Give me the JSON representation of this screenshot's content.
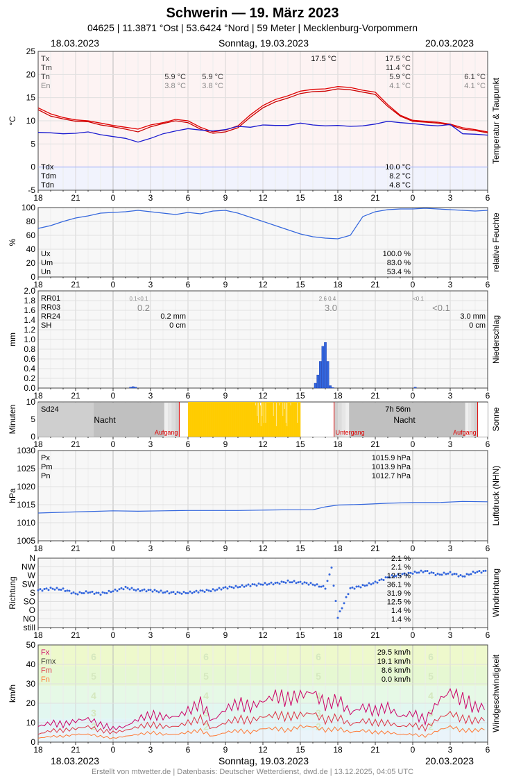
{
  "header": {
    "title": "Schwerin  —  19. März 2023",
    "subtitle": "04625  |  11.3871 °Ost  |  53.6424 °Nord  |  59 Meter  |  Mecklenburg-Vorpommern",
    "date_left": "18.03.2023",
    "date_center": "Sonntag, 19.03.2023",
    "date_right": "20.03.2023"
  },
  "footer": {
    "credit": "Erstellt von mtwetter.de | Datenbasis: Deutscher Wetterdienst, dwd.de | 13.12.2025, 04:05 UTC"
  },
  "colors": {
    "temp": "#e00000",
    "dew": "#1a1ad0",
    "blue": "#3366dd",
    "sun": "#ffcc00",
    "night": "#c0c0c0",
    "magenta": "#cc0066",
    "red": "#dd2222",
    "orange": "#ff7733",
    "grid": "#dddddd"
  },
  "x_ticks": [
    "18",
    "21",
    "0",
    "3",
    "6",
    "9",
    "12",
    "15",
    "18",
    "21",
    "0",
    "3",
    "6"
  ],
  "chart_data": [
    {
      "id": "temp",
      "type": "line",
      "ylabel": "°C",
      "side_label": "Temperatur & Taupunkt",
      "ylim": [
        -5,
        25
      ],
      "yticks": [
        "25",
        "20",
        "15",
        "10",
        "5",
        "0",
        "-5"
      ],
      "legend": [
        {
          "label": "Tx",
          "c1": "",
          "c2": "17.5 °C",
          "c3": "17.5 °C",
          "c4": ""
        },
        {
          "label": "Tm",
          "c1": "",
          "c2": "",
          "c3": "11.4 °C",
          "c4": ""
        },
        {
          "label": "Tn",
          "c1": "5.9 °C",
          "c2": "5.9 °C",
          "c3": "5.9 °C",
          "c4": "6.1 °C"
        },
        {
          "label": "En",
          "c1": "3.8 °C",
          "c2": "3.8 °C",
          "c3": "4.1 °C",
          "c4": "4.1 °C"
        }
      ],
      "legend2": [
        {
          "label": "Tdx",
          "value": "10.0 °C"
        },
        {
          "label": "Tdm",
          "value": "8.2 °C"
        },
        {
          "label": "Tdn",
          "value": "4.8 °C"
        }
      ],
      "x_hours": [
        0,
        1,
        2,
        3,
        4,
        5,
        6,
        7,
        8,
        9,
        10,
        11,
        12,
        13,
        14,
        15,
        16,
        17,
        18,
        19,
        20,
        21,
        22,
        23,
        24,
        25,
        26,
        27,
        28,
        29,
        30,
        31,
        32,
        33,
        34,
        35,
        36
      ],
      "series": [
        {
          "name": "Tx",
          "values": [
            12.8,
            11.5,
            10.7,
            10.2,
            10.0,
            9.5,
            9.0,
            8.6,
            8.2,
            9.1,
            9.6,
            10.3,
            10.0,
            8.6,
            7.6,
            8.0,
            8.9,
            11.3,
            13.3,
            14.6,
            15.4,
            16.4,
            16.8,
            16.9,
            17.4,
            17.2,
            16.6,
            16.2,
            13.5,
            11.2,
            10.1,
            9.9,
            9.7,
            9.3,
            8.5,
            8.1,
            7.6
          ]
        },
        {
          "name": "Tm",
          "values": [
            12.4,
            11.0,
            10.4,
            9.9,
            9.8,
            9.1,
            8.7,
            8.2,
            7.6,
            8.7,
            9.4,
            10.0,
            9.6,
            8.2,
            7.3,
            7.6,
            8.5,
            10.8,
            12.8,
            14.1,
            14.9,
            15.9,
            16.3,
            16.4,
            16.9,
            16.7,
            16.2,
            15.7,
            13.1,
            11.0,
            9.9,
            9.7,
            9.5,
            9.1,
            8.2,
            7.9,
            7.4
          ]
        },
        {
          "name": "Td",
          "values": [
            7.5,
            7.4,
            7.2,
            7.3,
            7.6,
            7.0,
            6.6,
            6.2,
            5.4,
            6.2,
            7.2,
            7.8,
            8.3,
            8.0,
            7.8,
            8.1,
            8.8,
            8.6,
            9.1,
            9.0,
            9.0,
            9.5,
            9.1,
            8.9,
            9.0,
            8.8,
            8.9,
            9.3,
            9.9,
            9.6,
            9.4,
            9.1,
            8.9,
            9.2,
            7.2,
            7.1,
            6.9
          ]
        },
        {
          "name": "Tdm",
          "values": [
            0,
            0,
            0,
            0,
            0,
            0,
            0,
            0,
            0,
            0,
            0,
            0,
            0,
            0,
            0,
            0,
            0,
            0,
            0,
            0,
            0,
            0,
            0,
            0,
            0,
            0,
            0,
            0,
            0,
            0,
            0,
            0,
            0,
            0,
            0,
            0,
            0
          ]
        }
      ]
    },
    {
      "id": "hum",
      "type": "line",
      "ylabel": "%",
      "side_label": "relative Feuchte",
      "ylim": [
        0,
        100
      ],
      "yticks": [
        "100",
        "80",
        "60",
        "40",
        "20",
        "0"
      ],
      "legend": [
        {
          "label": "Ux",
          "value": "100.0 %"
        },
        {
          "label": "Um",
          "value": "83.0 %"
        },
        {
          "label": "Un",
          "value": "53.4 %"
        }
      ],
      "x_hours": [
        0,
        1,
        2,
        3,
        4,
        5,
        6,
        7,
        8,
        9,
        10,
        11,
        12,
        13,
        14,
        15,
        16,
        17,
        18,
        19,
        20,
        21,
        22,
        23,
        24,
        25,
        26,
        27,
        28,
        29,
        30,
        31,
        32,
        33,
        34,
        35,
        36
      ],
      "series": [
        {
          "name": "U",
          "values": [
            70,
            74,
            80,
            85,
            88,
            92,
            93,
            94,
            96,
            94,
            92,
            90,
            93,
            91,
            95,
            96,
            92,
            86,
            80,
            74,
            68,
            62,
            58,
            56,
            55,
            60,
            87,
            94,
            97,
            98,
            98,
            99,
            98,
            97,
            96,
            95,
            96
          ]
        }
      ]
    },
    {
      "id": "rain",
      "type": "bar",
      "ylabel": "mm",
      "side_label": "Niederschlag",
      "ylim": [
        0,
        2.0
      ],
      "yticks": [
        "2.0",
        "1.8",
        "1.6",
        "1.4",
        "1.2",
        "1.0",
        "0.8",
        "0.6",
        "0.4",
        "0.2",
        "0.0"
      ],
      "legend": [
        {
          "label": "RR01",
          "small": [
            "0.1<0.1",
            "2.6  0.4",
            "<0.1"
          ]
        },
        {
          "label": "RR03",
          "big": [
            "0.2",
            "3.0",
            "<0.1"
          ]
        },
        {
          "label": "RR24",
          "c1": "0.2 mm",
          "c3": "3.0 mm"
        },
        {
          "label": "SH",
          "c1": "0 cm",
          "c3": "0 cm"
        }
      ],
      "bars": [
        {
          "x": 7.4,
          "v": 0.02
        },
        {
          "x": 7.6,
          "v": 0.03
        },
        {
          "x": 7.8,
          "v": 0.02
        },
        {
          "x": 22.2,
          "v": 0.1
        },
        {
          "x": 22.4,
          "v": 0.27
        },
        {
          "x": 22.6,
          "v": 0.55
        },
        {
          "x": 22.8,
          "v": 0.86
        },
        {
          "x": 23.0,
          "v": 0.94
        },
        {
          "x": 23.2,
          "v": 0.55
        },
        {
          "x": 23.4,
          "v": 0.05
        },
        {
          "x": 23.6,
          "v": 0.01
        },
        {
          "x": 30.2,
          "v": 0.02
        }
      ]
    },
    {
      "id": "sun",
      "type": "bar",
      "ylabel": "Minuten",
      "side_label": "Sonne",
      "ylim": [
        0,
        10
      ],
      "yticks": [
        "10",
        "5",
        "0"
      ],
      "sd24_label": "Sd24",
      "sd24_value": "7h 56m",
      "night_label": "Nacht",
      "sunrise_label": "Aufgang",
      "sunset_label": "Untergang",
      "sunrise1": 11.3,
      "sunset": 23.7,
      "sunrise2": 35.2,
      "sun_start": 12.0,
      "sun_end": 21.0,
      "sun_values": [
        10,
        10,
        10,
        10,
        10,
        10,
        10,
        10,
        10,
        10,
        10,
        10,
        10,
        10,
        10,
        10,
        10,
        10,
        10,
        10,
        10,
        10,
        10,
        10,
        10,
        10,
        10,
        10,
        10,
        10,
        10,
        10,
        10,
        10,
        10,
        10,
        10,
        10,
        10,
        10,
        10,
        10,
        10,
        10,
        10,
        10,
        10,
        10,
        10,
        10,
        10,
        10,
        10,
        10,
        10,
        10,
        10,
        10,
        10,
        10,
        10,
        10,
        10,
        10,
        10,
        10,
        10,
        10,
        10,
        10,
        10,
        10,
        10,
        10,
        10,
        10,
        10,
        10,
        10,
        10,
        10,
        10,
        10,
        10,
        10,
        10,
        10,
        10,
        10,
        10,
        10,
        10,
        10,
        10,
        10,
        10,
        10,
        10,
        10,
        10,
        10,
        10,
        10,
        10,
        10,
        10,
        10,
        10,
        10,
        10,
        10,
        10,
        10,
        9,
        10,
        10,
        6,
        10,
        4,
        10,
        10,
        9,
        3,
        10,
        6,
        10,
        10,
        4,
        10,
        10,
        4,
        10,
        10,
        10,
        10,
        10,
        10,
        10,
        10,
        10,
        10,
        10,
        10,
        6,
        10,
        10,
        10,
        10,
        3,
        10,
        10,
        10,
        10,
        9,
        10,
        10,
        10,
        10,
        10,
        6,
        10,
        10,
        8,
        10,
        4,
        10,
        3,
        10,
        10,
        10,
        10,
        10,
        9,
        10,
        10,
        10,
        10,
        10,
        10,
        10,
        10,
        10,
        10,
        4,
        10,
        10,
        10,
        10,
        10
      ]
    },
    {
      "id": "press",
      "type": "line",
      "ylabel": "hPa",
      "side_label": "Luftdruck (NHN)",
      "ylim": [
        1005,
        1030
      ],
      "yticks": [
        "1030",
        "1025",
        "1020",
        "1015",
        "1010",
        "1005"
      ],
      "legend": [
        {
          "label": "Px",
          "value": "1015.9 hPa"
        },
        {
          "label": "Pm",
          "value": "1013.9 hPa"
        },
        {
          "label": "Pn",
          "value": "1012.7 hPa"
        }
      ],
      "x_hours": [
        0,
        2,
        4,
        6,
        8,
        10,
        12,
        14,
        16,
        18,
        20,
        22,
        23,
        24,
        26,
        28,
        30,
        32,
        34,
        36
      ],
      "series": [
        {
          "name": "P",
          "values": [
            1012.7,
            1012.9,
            1013.1,
            1013.3,
            1013.2,
            1013.3,
            1013.4,
            1013.4,
            1013.4,
            1013.5,
            1013.6,
            1013.6,
            1014.4,
            1014.9,
            1015.1,
            1015.4,
            1015.6,
            1015.6,
            1015.9,
            1015.8
          ]
        }
      ]
    },
    {
      "id": "wdir",
      "type": "scatter",
      "ylabel": "Richtung",
      "side_label": "Windrichtung",
      "ylim": [
        0,
        8
      ],
      "ycats": [
        "N",
        "NW",
        "W",
        "SW",
        "S",
        "SO",
        "O",
        "NO",
        "still"
      ],
      "legend_values": [
        "2.1 %",
        "2.1 %",
        "12.5 %",
        "36.1 %",
        "31.9 %",
        "12.5 %",
        "1.4 %",
        "1.4 %"
      ],
      "x_hours": [
        0,
        1,
        2,
        3,
        4,
        5,
        6,
        7,
        8,
        9,
        10,
        11,
        12,
        13,
        14,
        15,
        16,
        17,
        18,
        19,
        20,
        21,
        22,
        23,
        23.5,
        24,
        25,
        26,
        27,
        28,
        29,
        30,
        31,
        32,
        33,
        34,
        35,
        36
      ],
      "series": [
        {
          "name": "dir",
          "values": [
            4.3,
            4.5,
            4.4,
            3.9,
            4.1,
            3.9,
            4.2,
            4.6,
            4.3,
            4.3,
            4.1,
            4.0,
            4.0,
            4.2,
            4.3,
            4.6,
            4.7,
            4.9,
            5.0,
            5.1,
            5.3,
            5.2,
            5.0,
            4.6,
            6.8,
            1.2,
            4.5,
            4.8,
            5.2,
            5.8,
            6.1,
            6.3,
            6.5,
            6.1,
            6.3,
            5.9,
            6.4,
            6.5
          ]
        }
      ]
    },
    {
      "id": "wspd",
      "type": "line",
      "ylabel": "km/h",
      "side_label": "Windgeschwindigkeit",
      "ylim": [
        0,
        50
      ],
      "yticks": [
        "50",
        "40",
        "30",
        "20",
        "10",
        "0"
      ],
      "bft": [
        "6",
        "5",
        "4",
        "3",
        "2"
      ],
      "legend": [
        {
          "label": "Fx",
          "value": "29.5 km/h"
        },
        {
          "label": "Fmx",
          "value": "19.1 km/h"
        },
        {
          "label": "Fm",
          "value": "8.6 km/h"
        },
        {
          "label": "Fn",
          "value": "0.0 km/h"
        }
      ],
      "x_hours": [
        0,
        1,
        2,
        3,
        4,
        5,
        6,
        7,
        8,
        9,
        10,
        11,
        12,
        13,
        14,
        15,
        16,
        17,
        18,
        19,
        20,
        21,
        22,
        23,
        24,
        25,
        26,
        27,
        28,
        29,
        30,
        31,
        32,
        33,
        34,
        35,
        36
      ],
      "series": [
        {
          "name": "Fx",
          "values": [
            8,
            10,
            9,
            11,
            12,
            9,
            7,
            8,
            12,
            14,
            13,
            13,
            16,
            20,
            11,
            17,
            20,
            18,
            21,
            24,
            22,
            24,
            26,
            19,
            22,
            15,
            18,
            16,
            18,
            13,
            15,
            11,
            21,
            26,
            22,
            18,
            18
          ]
        },
        {
          "name": "Fm",
          "values": [
            4,
            6,
            6,
            7,
            8,
            6,
            5,
            6,
            8,
            9,
            8,
            8,
            10,
            12,
            7,
            10,
            12,
            11,
            13,
            14,
            13,
            14,
            15,
            11,
            13,
            9,
            11,
            10,
            10,
            8,
            9,
            7,
            12,
            15,
            12,
            11,
            12
          ]
        },
        {
          "name": "Fn",
          "values": [
            2,
            3,
            3,
            4,
            4,
            3,
            2,
            3,
            4,
            5,
            4,
            4,
            5,
            6,
            3,
            5,
            6,
            5,
            7,
            7,
            6,
            8,
            8,
            6,
            7,
            5,
            6,
            5,
            5,
            4,
            4,
            3,
            6,
            8,
            6,
            6,
            7
          ]
        }
      ]
    }
  ]
}
